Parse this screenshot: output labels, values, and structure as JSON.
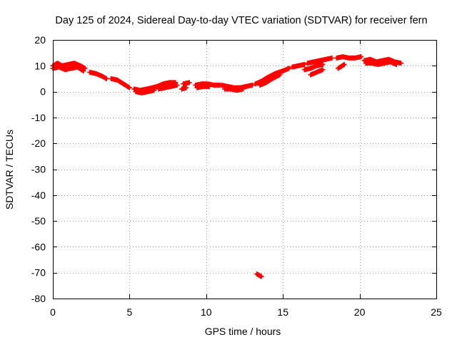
{
  "chart_data": {
    "type": "scatter",
    "title": "Day 125 of 2024, Sidereal Day-to-day VTEC variation (SDTVAR) for receiver fern",
    "xlabel": "GPS time / hours",
    "ylabel": "SDTVAR / TECUs",
    "xlim": [
      0,
      25
    ],
    "ylim": [
      -80,
      20
    ],
    "xticks": [
      0,
      5,
      10,
      15,
      20,
      25
    ],
    "yticks": [
      20,
      10,
      0,
      -10,
      -20,
      -30,
      -40,
      -50,
      -60,
      -70,
      -80
    ],
    "grid": true,
    "marker": "plus",
    "color": "#ff0000",
    "series": [
      {
        "name": "SDTVAR",
        "segments": [
          {
            "x": [
              0.0,
              0.3,
              0.6,
              1.0,
              1.4,
              1.8,
              2.1
            ],
            "y": [
              10.0,
              11.0,
              10.0,
              10.5,
              11.0,
              10.0,
              9.0
            ]
          },
          {
            "x": [
              0.0,
              0.4,
              0.8,
              1.2,
              1.6,
              2.0
            ],
            "y": [
              9.0,
              9.5,
              8.5,
              9.0,
              9.5,
              8.0
            ]
          },
          {
            "x": [
              2.4,
              2.8,
              3.2,
              3.5
            ],
            "y": [
              7.5,
              7.0,
              6.0,
              5.0
            ]
          },
          {
            "x": [
              3.8,
              4.2,
              4.6,
              5.0
            ],
            "y": [
              5.0,
              4.5,
              3.0,
              1.5
            ]
          },
          {
            "x": [
              5.3,
              5.7,
              6.1,
              6.5,
              6.8
            ],
            "y": [
              1.0,
              0.5,
              1.0,
              1.5,
              2.0
            ]
          },
          {
            "x": [
              5.4,
              5.8,
              6.2,
              6.6
            ],
            "y": [
              0.0,
              -0.5,
              0.0,
              0.5
            ]
          },
          {
            "x": [
              6.8,
              7.2,
              7.6,
              8.0
            ],
            "y": [
              2.0,
              3.0,
              3.5,
              3.5
            ]
          },
          {
            "x": [
              6.9,
              7.3,
              7.7,
              8.1
            ],
            "y": [
              1.0,
              1.5,
              2.0,
              2.5
            ]
          },
          {
            "x": [
              8.5,
              8.9
            ],
            "y": [
              3.0,
              3.5
            ]
          },
          {
            "x": [
              8.4,
              8.7
            ],
            "y": [
              1.0,
              1.5
            ]
          },
          {
            "x": [
              9.3,
              9.7,
              10.1,
              10.5,
              10.9
            ],
            "y": [
              2.5,
              3.0,
              3.0,
              2.5,
              2.5
            ]
          },
          {
            "x": [
              9.4,
              9.8,
              10.2
            ],
            "y": [
              1.5,
              2.0,
              2.0
            ]
          },
          {
            "x": [
              11.0,
              11.4,
              11.8,
              12.2,
              12.6,
              13.0
            ],
            "y": [
              2.5,
              2.0,
              1.5,
              1.5,
              2.0,
              2.5
            ]
          },
          {
            "x": [
              11.2,
              11.6,
              12.0,
              12.4
            ],
            "y": [
              1.0,
              1.0,
              0.5,
              1.0
            ]
          },
          {
            "x": [
              13.2,
              13.6,
              14.0,
              14.5,
              15.0,
              15.4
            ],
            "y": [
              3.0,
              4.0,
              5.5,
              7.0,
              8.0,
              9.0
            ]
          },
          {
            "x": [
              13.5,
              13.9,
              14.3,
              14.8
            ],
            "y": [
              2.5,
              3.5,
              5.0,
              6.5
            ]
          },
          {
            "x": [
              15.6,
              16.0,
              16.4
            ],
            "y": [
              9.5,
              10.0,
              10.5
            ]
          },
          {
            "x": [
              16.6,
              17.0,
              17.4,
              17.8,
              18.2
            ],
            "y": [
              11.0,
              11.5,
              12.0,
              12.5,
              13.0
            ]
          },
          {
            "x": [
              16.4,
              16.8,
              17.2,
              17.6
            ],
            "y": [
              8.5,
              9.0,
              10.0,
              10.5
            ]
          },
          {
            "x": [
              16.8,
              17.2,
              17.6
            ],
            "y": [
              6.5,
              7.5,
              8.5
            ]
          },
          {
            "x": [
              18.5,
              18.9,
              19.3,
              19.7,
              20.1
            ],
            "y": [
              13.0,
              13.5,
              13.0,
              13.0,
              13.5
            ]
          },
          {
            "x": [
              18.6,
              19.0
            ],
            "y": [
              9.0,
              10.5
            ]
          },
          {
            "x": [
              20.3,
              20.7,
              21.1,
              21.5,
              21.9,
              22.3,
              22.7
            ],
            "y": [
              12.0,
              12.5,
              11.5,
              12.0,
              12.5,
              11.5,
              11.0
            ]
          },
          {
            "x": [
              20.4,
              20.8,
              21.2,
              21.6,
              22.0,
              22.4
            ],
            "y": [
              11.0,
              11.0,
              10.5,
              11.0,
              11.5,
              10.5
            ]
          },
          {
            "x": [
              13.3,
              13.6
            ],
            "y": [
              -70.5,
              -71.5
            ]
          }
        ]
      }
    ]
  }
}
